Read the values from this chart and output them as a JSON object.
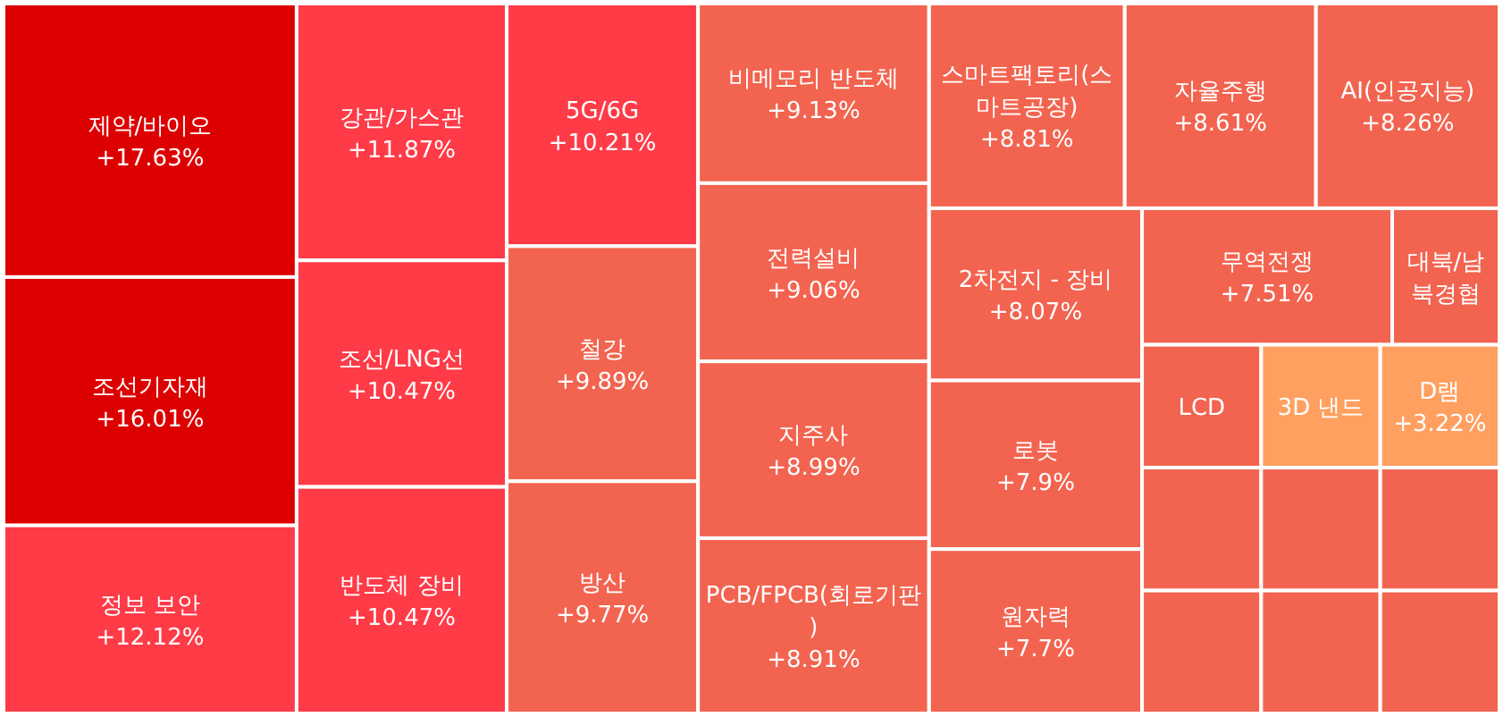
{
  "chart_data": {
    "type": "other",
    "categories": [
      "제약/바이오",
      "조선기자재",
      "정보 보안",
      "강관/가스관",
      "조선/LNG선",
      "반도체 장비",
      "5G/6G",
      "철강",
      "방산",
      "비메모리 반도체",
      "전력설비",
      "지주사",
      "PCB/FPCB(회로기판)",
      "스마트팩토리(스마트공장)",
      "자율주행",
      "AI(인공지능)",
      "2차전지 - 장비",
      "로봇",
      "원자력",
      "무역전쟁",
      "대북/남북경협",
      "LCD",
      "3D 낸드",
      "D램",
      null,
      null,
      null,
      null,
      null,
      null
    ],
    "values": [
      17.63,
      16.01,
      12.12,
      11.87,
      10.47,
      10.47,
      10.21,
      9.89,
      9.77,
      9.13,
      9.06,
      8.99,
      8.91,
      8.81,
      8.61,
      8.26,
      8.07,
      7.9,
      7.7,
      7.51,
      null,
      null,
      null,
      3.22,
      null,
      null,
      null,
      null,
      null,
      null
    ],
    "value_labels": [
      "+17.63%",
      "+16.01%",
      "+12.12%",
      "+11.87%",
      "+10.47%",
      "+10.47%",
      "+10.21%",
      "+9.89%",
      "+9.77%",
      "+9.13%",
      "+9.06%",
      "+8.99%",
      "+8.91%",
      "+8.81%",
      "+8.61%",
      "+8.26%",
      "+8.07%",
      "+7.9%",
      "+7.7%",
      "+7.51%",
      null,
      null,
      null,
      "+3.22%",
      null,
      null,
      null,
      null,
      null,
      null
    ],
    "colors": [
      "#dd0000",
      "#dd0000",
      "#ff3b48",
      "#ff3b48",
      "#ff3b48",
      "#ff3b48",
      "#ff3b48",
      "#f26450",
      "#f26450",
      "#f26450",
      "#f26450",
      "#f26450",
      "#f26450",
      "#f26450",
      "#f26450",
      "#f26450",
      "#f26450",
      "#f26450",
      "#f26450",
      "#f26450",
      "#f26450",
      "#f26450",
      "#ffa060",
      "#ffa060",
      "#f26450",
      "#f26450",
      "#f26450",
      "#f26450",
      "#f26450",
      "#f26450"
    ]
  }
}
